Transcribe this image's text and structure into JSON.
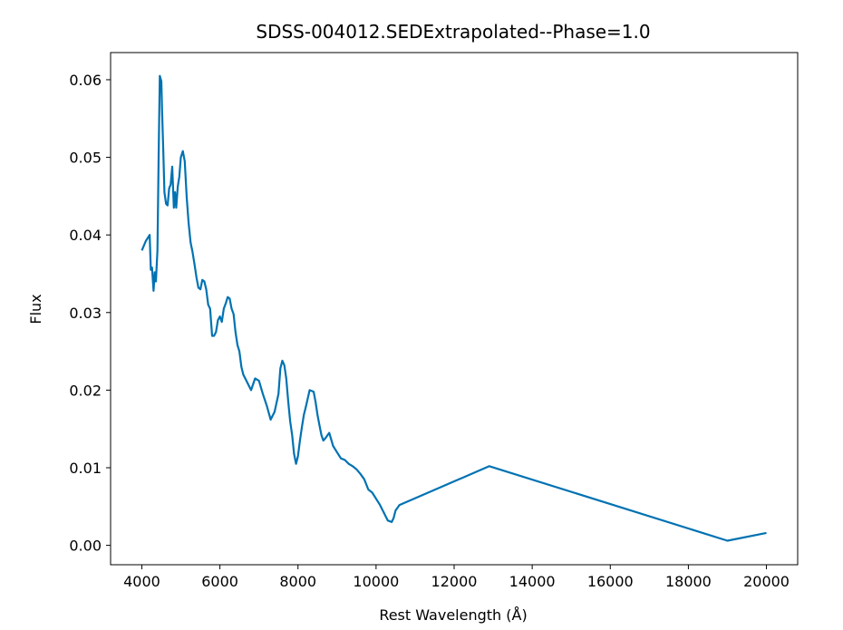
{
  "chart_data": {
    "type": "line",
    "title": "SDSS-004012.SEDExtrapolated--Phase=1.0",
    "xlabel": "Rest Wavelength (Å)",
    "ylabel": "Flux",
    "xlim": [
      3200,
      20800
    ],
    "ylim": [
      -0.0025,
      0.0635
    ],
    "xticks": [
      4000,
      6000,
      8000,
      10000,
      12000,
      14000,
      16000,
      18000,
      20000
    ],
    "xtick_labels": [
      "4000",
      "6000",
      "8000",
      "10000",
      "12000",
      "14000",
      "16000",
      "18000",
      "20000"
    ],
    "yticks": [
      0.0,
      0.01,
      0.02,
      0.03,
      0.04,
      0.05,
      0.06
    ],
    "ytick_labels": [
      "0.00",
      "0.01",
      "0.02",
      "0.03",
      "0.04",
      "0.05",
      "0.06"
    ],
    "grid": false,
    "series": [
      {
        "color": "#0072b2",
        "x": [
          4000,
          4100,
          4200,
          4230,
          4260,
          4300,
          4330,
          4360,
          4400,
          4430,
          4460,
          4500,
          4520,
          4550,
          4580,
          4620,
          4660,
          4700,
          4740,
          4780,
          4820,
          4850,
          4880,
          4920,
          4960,
          5000,
          5050,
          5100,
          5150,
          5200,
          5250,
          5300,
          5350,
          5400,
          5450,
          5500,
          5550,
          5600,
          5650,
          5700,
          5750,
          5800,
          5850,
          5900,
          5950,
          6000,
          6050,
          6100,
          6150,
          6200,
          6250,
          6300,
          6350,
          6400,
          6450,
          6500,
          6550,
          6600,
          6700,
          6800,
          6900,
          7000,
          7100,
          7200,
          7300,
          7400,
          7500,
          7550,
          7600,
          7650,
          7700,
          7750,
          7800,
          7850,
          7900,
          7950,
          8000,
          8050,
          8100,
          8150,
          8200,
          8300,
          8400,
          8450,
          8500,
          8550,
          8600,
          8650,
          8700,
          8800,
          8900,
          9000,
          9100,
          9200,
          9300,
          9400,
          9500,
          9600,
          9700,
          9800,
          9900,
          10000,
          10100,
          10200,
          10300,
          10400,
          10450,
          10500,
          10600,
          12900,
          19000,
          20000
        ],
        "y": [
          0.038,
          0.0392,
          0.04,
          0.0355,
          0.0358,
          0.0328,
          0.0352,
          0.034,
          0.038,
          0.05,
          0.0605,
          0.0598,
          0.056,
          0.051,
          0.0455,
          0.044,
          0.0438,
          0.046,
          0.0465,
          0.0488,
          0.0435,
          0.0455,
          0.0435,
          0.0462,
          0.0475,
          0.05,
          0.0508,
          0.0495,
          0.0448,
          0.0415,
          0.039,
          0.0378,
          0.0362,
          0.0345,
          0.0332,
          0.033,
          0.0342,
          0.034,
          0.033,
          0.031,
          0.0305,
          0.027,
          0.027,
          0.0275,
          0.029,
          0.0295,
          0.0288,
          0.0305,
          0.0312,
          0.032,
          0.0318,
          0.0305,
          0.0298,
          0.0275,
          0.0258,
          0.025,
          0.023,
          0.022,
          0.021,
          0.02,
          0.0215,
          0.0212,
          0.0195,
          0.018,
          0.0162,
          0.0172,
          0.0195,
          0.0228,
          0.0238,
          0.0232,
          0.0215,
          0.0185,
          0.016,
          0.0142,
          0.0118,
          0.0105,
          0.0115,
          0.0135,
          0.0152,
          0.0168,
          0.0178,
          0.02,
          0.0198,
          0.0185,
          0.0168,
          0.0155,
          0.0142,
          0.0135,
          0.0138,
          0.0145,
          0.0128,
          0.012,
          0.0112,
          0.011,
          0.0105,
          0.0102,
          0.0098,
          0.0092,
          0.0085,
          0.0072,
          0.0068,
          0.006,
          0.0052,
          0.0042,
          0.0032,
          0.003,
          0.0035,
          0.0045,
          0.0052,
          0.0102,
          0.0006,
          0.0016
        ]
      }
    ]
  }
}
